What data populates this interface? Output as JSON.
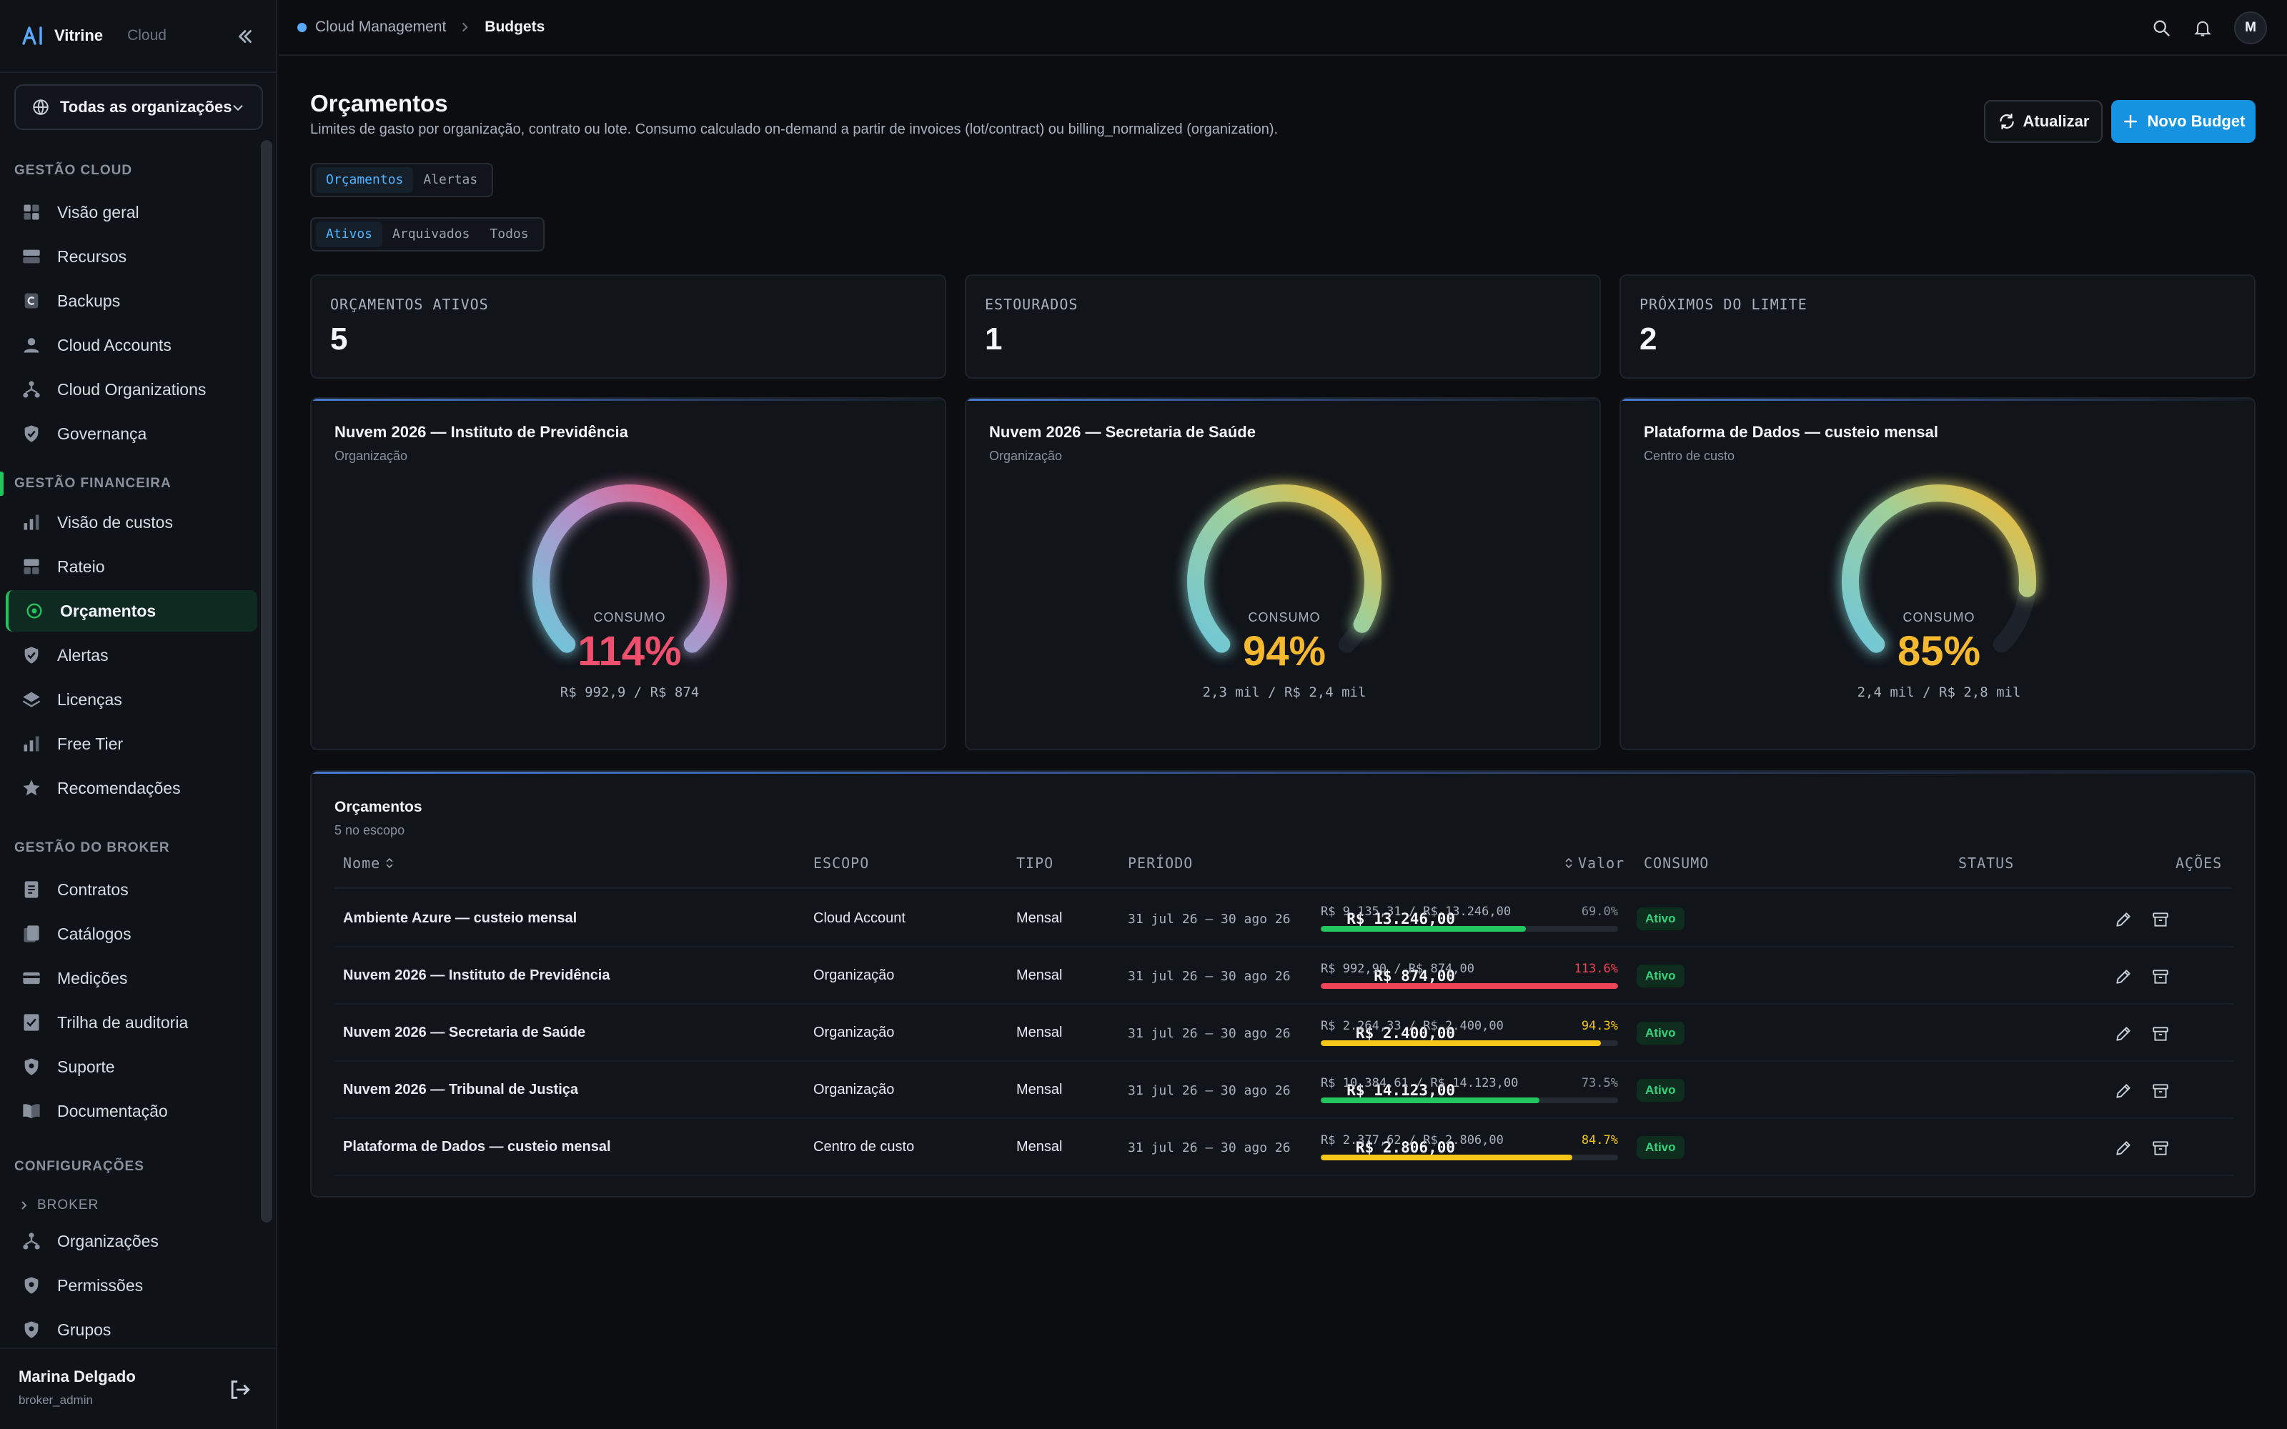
{
  "app": {
    "brand": "Vitrine",
    "brand_sub": "Cloud"
  },
  "org_selector": {
    "label": "Todas as organizações"
  },
  "sidebar": {
    "sections": [
      {
        "title": "GESTÃO CLOUD",
        "items": [
          "Visão geral",
          "Recursos",
          "Backups",
          "Cloud Accounts",
          "Cloud Organizations",
          "Governança"
        ]
      },
      {
        "title": "GESTÃO FINANCEIRA",
        "items": [
          "Visão de custos",
          "Rateio",
          "Orçamentos",
          "Alertas",
          "Licenças",
          "Free Tier",
          "Recomendações"
        ]
      },
      {
        "title": "GESTÃO DO BROKER",
        "items": [
          "Contratos",
          "Catálogos",
          "Medições",
          "Trilha de auditoria",
          "Suporte",
          "Documentação"
        ]
      },
      {
        "title": "CONFIGURAÇÕES",
        "sub": "BROKER",
        "items": [
          "Organizações",
          "Permissões",
          "Grupos"
        ]
      }
    ],
    "active_item": "Orçamentos"
  },
  "user": {
    "name": "Marina Delgado",
    "role": "broker_admin",
    "initial": "M"
  },
  "breadcrumb": {
    "parent": "Cloud Management",
    "current": "Budgets"
  },
  "page": {
    "title": "Orçamentos",
    "subtitle": "Limites de gasto por organização, contrato ou lote. Consumo calculado on-demand a partir de invoices (lot/contract) ou billing_normalized (organization).",
    "refresh_label": "Atualizar",
    "new_label": "Novo Budget"
  },
  "tabs": {
    "items": [
      "Orçamentos",
      "Alertas"
    ],
    "selected": 0
  },
  "filters": {
    "items": [
      "Ativos",
      "Arquivados",
      "Todos"
    ],
    "selected": 0
  },
  "kpis": [
    {
      "label": "ORÇAMENTOS ATIVOS",
      "value": "5"
    },
    {
      "label": "ESTOURADOS",
      "value": "1"
    },
    {
      "label": "PRÓXIMOS DO LIMITE",
      "value": "2"
    }
  ],
  "gauges": [
    {
      "title": "Nuvem 2026 — Instituto de Previdência",
      "subtitle": "Organização",
      "label": "CONSUMO",
      "percent": "114%",
      "amount": "R$ 992,9 / R$ 874",
      "fraction": 1.14,
      "color": "#f0506e"
    },
    {
      "title": "Nuvem 2026 — Secretaria de Saúde",
      "subtitle": "Organização",
      "label": "CONSUMO",
      "percent": "94%",
      "amount": "2,3 mil / R$ 2,4 mil",
      "fraction": 0.94,
      "color": "#f5b82e"
    },
    {
      "title": "Plataforma de Dados — custeio mensal",
      "subtitle": "Centro de custo",
      "label": "CONSUMO",
      "percent": "85%",
      "amount": "2,4 mil / R$ 2,8 mil",
      "fraction": 0.85,
      "color": "#f5b82e"
    }
  ],
  "table": {
    "title": "Orçamentos",
    "subtitle": "5 no escopo",
    "headers": {
      "name": "Nome",
      "scope": "ESCOPO",
      "type": "TIPO",
      "period": "PERÍODO",
      "value": "Valor",
      "consumption": "CONSUMO",
      "status": "STATUS",
      "actions": "AÇÕES"
    },
    "rows": [
      {
        "name": "Ambiente Azure — custeio mensal",
        "scope": "Cloud Account",
        "type": "Mensal",
        "period": "31 jul 26 – 30 ago 26",
        "value": "R$ 13.246,00",
        "consumption": "R$ 9.135,31 / R$ 13.246,00",
        "pct": "69.0%",
        "fraction": 0.69,
        "bar_color": "#22c55e",
        "pct_color": "#8a919d",
        "status": "Ativo"
      },
      {
        "name": "Nuvem 2026 — Instituto de Previdência",
        "scope": "Organização",
        "type": "Mensal",
        "period": "31 jul 26 – 30 ago 26",
        "value": "R$ 874,00",
        "consumption": "R$ 992,90 / R$ 874,00",
        "pct": "113.6%",
        "fraction": 1.0,
        "bar_color": "#ef4458",
        "pct_color": "#ef4458",
        "status": "Ativo"
      },
      {
        "name": "Nuvem 2026 — Secretaria de Saúde",
        "scope": "Organização",
        "type": "Mensal",
        "period": "31 jul 26 – 30 ago 26",
        "value": "R$ 2.400,00",
        "consumption": "R$ 2.264,33 / R$ 2.400,00",
        "pct": "94.3%",
        "fraction": 0.943,
        "bar_color": "#f5c518",
        "pct_color": "#f5c518",
        "status": "Ativo"
      },
      {
        "name": "Nuvem 2026 — Tribunal de Justiça",
        "scope": "Organização",
        "type": "Mensal",
        "period": "31 jul 26 – 30 ago 26",
        "value": "R$ 14.123,00",
        "consumption": "R$ 10.384,61 / R$ 14.123,00",
        "pct": "73.5%",
        "fraction": 0.735,
        "bar_color": "#22c55e",
        "pct_color": "#8a919d",
        "status": "Ativo"
      },
      {
        "name": "Plataforma de Dados — custeio mensal",
        "scope": "Centro de custo",
        "type": "Mensal",
        "period": "31 jul 26 – 30 ago 26",
        "value": "R$ 2.806,00",
        "consumption": "R$ 2.377,62 / R$ 2.806,00",
        "pct": "84.7%",
        "fraction": 0.847,
        "bar_color": "#f5c518",
        "pct_color": "#f5c518",
        "status": "Ativo"
      }
    ]
  }
}
